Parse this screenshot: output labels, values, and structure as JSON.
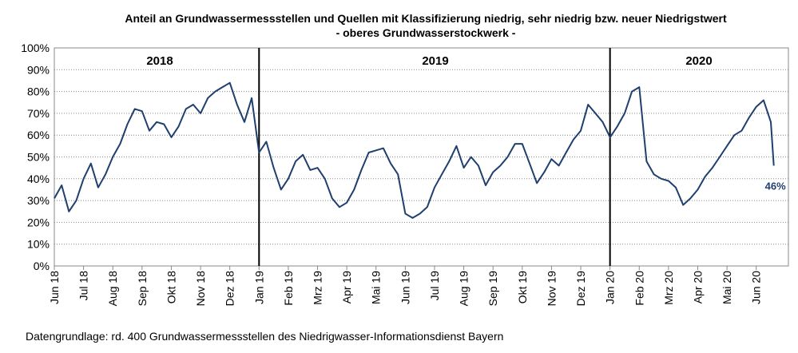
{
  "chart_data": {
    "type": "line",
    "title": "Anteil an Grundwassermessstellen und Quellen mit Klassifizierung niedrig, sehr niedrig bzw. neuer Niedrigstwert",
    "subtitle": "- oberes Grundwasserstockwerk -",
    "source": "Datengrundlage:  rd. 400 Grundwassermessstellen  des Niedrigwasser-Informationsdienst  Bayern",
    "year_labels": [
      "2018",
      "2019",
      "2020"
    ],
    "year_separators": [
      7,
      19
    ],
    "end_label": "46%",
    "xlim": [
      0,
      25.1
    ],
    "ylim": [
      0,
      100
    ],
    "yticks": [
      {
        "value": 0,
        "label": "0%"
      },
      {
        "value": 10,
        "label": "10%"
      },
      {
        "value": 20,
        "label": "20%"
      },
      {
        "value": 30,
        "label": "30%"
      },
      {
        "value": 40,
        "label": "40%"
      },
      {
        "value": 50,
        "label": "50%"
      },
      {
        "value": 60,
        "label": "60%"
      },
      {
        "value": 70,
        "label": "70%"
      },
      {
        "value": 80,
        "label": "80%"
      },
      {
        "value": 90,
        "label": "90%"
      },
      {
        "value": 100,
        "label": "100%"
      }
    ],
    "xticks": [
      {
        "value": 0,
        "label": "Jun 18"
      },
      {
        "value": 1,
        "label": "Jul 18"
      },
      {
        "value": 2,
        "label": "Aug 18"
      },
      {
        "value": 3,
        "label": "Sep 18"
      },
      {
        "value": 4,
        "label": "Okt 18"
      },
      {
        "value": 5,
        "label": "Nov 18"
      },
      {
        "value": 6,
        "label": "Dez 18"
      },
      {
        "value": 7,
        "label": "Jan 19"
      },
      {
        "value": 8,
        "label": "Feb 19"
      },
      {
        "value": 9,
        "label": "Mrz 19"
      },
      {
        "value": 10,
        "label": "Apr 19"
      },
      {
        "value": 11,
        "label": "Mai 19"
      },
      {
        "value": 12,
        "label": "Jun 19"
      },
      {
        "value": 13,
        "label": "Jul 19"
      },
      {
        "value": 14,
        "label": "Aug 19"
      },
      {
        "value": 15,
        "label": "Sep 19"
      },
      {
        "value": 16,
        "label": "Okt 19"
      },
      {
        "value": 17,
        "label": "Nov 19"
      },
      {
        "value": 18,
        "label": "Dez 19"
      },
      {
        "value": 19,
        "label": "Jan 20"
      },
      {
        "value": 20,
        "label": "Feb 20"
      },
      {
        "value": 21,
        "label": "Mrz 20"
      },
      {
        "value": 22,
        "label": "Apr 20"
      },
      {
        "value": 23,
        "label": "Mai 20"
      },
      {
        "value": 24,
        "label": "Jun 20"
      }
    ],
    "grid": true,
    "color": "#1f3f6e",
    "x": [
      0,
      0.25,
      0.5,
      0.75,
      1,
      1.25,
      1.5,
      1.75,
      2,
      2.25,
      2.5,
      2.75,
      3,
      3.25,
      3.5,
      3.75,
      4,
      4.25,
      4.5,
      4.75,
      5,
      5.25,
      5.5,
      5.75,
      6,
      6.25,
      6.5,
      6.75,
      7,
      7.25,
      7.5,
      7.75,
      8,
      8.25,
      8.5,
      8.75,
      9,
      9.25,
      9.5,
      9.75,
      10,
      10.25,
      10.5,
      10.75,
      11,
      11.25,
      11.5,
      11.75,
      12,
      12.25,
      12.5,
      12.75,
      13,
      13.25,
      13.5,
      13.75,
      14,
      14.25,
      14.5,
      14.75,
      15,
      15.25,
      15.5,
      15.75,
      16,
      16.25,
      16.5,
      16.75,
      17,
      17.25,
      17.5,
      17.75,
      18,
      18.25,
      18.5,
      18.75,
      19,
      19.25,
      19.5,
      19.75,
      20,
      20.25,
      20.5,
      20.75,
      21,
      21.25,
      21.5,
      21.75,
      22,
      22.25,
      22.5,
      22.75,
      23,
      23.25,
      23.5,
      23.75,
      24,
      24.25,
      24.5,
      24.6
    ],
    "values": [
      31,
      37,
      25,
      30,
      40,
      47,
      36,
      42,
      50,
      56,
      65,
      72,
      71,
      62,
      66,
      65,
      59,
      64,
      72,
      74,
      70,
      77,
      80,
      82,
      84,
      74,
      66,
      77,
      52,
      57,
      45,
      35,
      40,
      48,
      51,
      44,
      45,
      40,
      31,
      27,
      29,
      35,
      44,
      52,
      53,
      54,
      47,
      42,
      24,
      22,
      24,
      27,
      36,
      42,
      48,
      55,
      45,
      50,
      46,
      37,
      43,
      46,
      50,
      56,
      56,
      47,
      38,
      43,
      49,
      46,
      52,
      58,
      62,
      74,
      70,
      66,
      59,
      64,
      70,
      80,
      82,
      48,
      42,
      40,
      39,
      36,
      28,
      31,
      35,
      41,
      45,
      50,
      55,
      60,
      62,
      68,
      73,
      76,
      66,
      46
    ]
  }
}
